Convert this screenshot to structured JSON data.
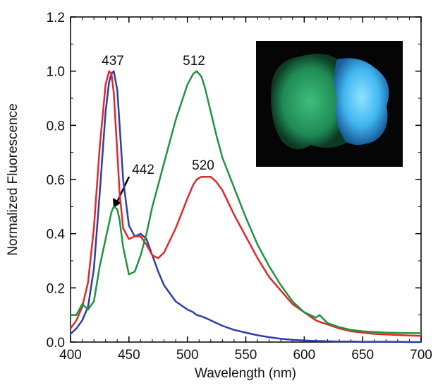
{
  "chart_data": {
    "type": "line",
    "xlabel": "Wavelength (nm)",
    "ylabel": "Normalized Fluorescence",
    "x": [
      400,
      405,
      410,
      415,
      420,
      425,
      430,
      433,
      435,
      437,
      440,
      442,
      445,
      450,
      455,
      460,
      465,
      470,
      475,
      480,
      490,
      500,
      505,
      508,
      512,
      515,
      520,
      525,
      530,
      540,
      550,
      560,
      570,
      580,
      590,
      600,
      610,
      613,
      620,
      630,
      640,
      650,
      660,
      670,
      680,
      690,
      700
    ],
    "series": [
      {
        "color": "#2b3ea8",
        "values": [
          0.03,
          0.05,
          0.08,
          0.13,
          0.27,
          0.55,
          0.85,
          0.96,
          0.99,
          1.0,
          0.93,
          0.8,
          0.6,
          0.43,
          0.39,
          0.4,
          0.38,
          0.32,
          0.26,
          0.21,
          0.15,
          0.12,
          0.11,
          0.1,
          0.095,
          0.09,
          0.08,
          0.07,
          0.06,
          0.045,
          0.035,
          0.025,
          0.018,
          0.012,
          0.008,
          0.006,
          0.004,
          0.004,
          0.003,
          0.002,
          0.002,
          0.001,
          0.001,
          0.001,
          0.001,
          0,
          0
        ]
      },
      {
        "color": "#e3262a",
        "values": [
          0.05,
          0.08,
          0.13,
          0.22,
          0.42,
          0.72,
          0.95,
          1.0,
          0.99,
          0.92,
          0.7,
          0.55,
          0.42,
          0.38,
          0.39,
          0.39,
          0.36,
          0.32,
          0.31,
          0.33,
          0.42,
          0.53,
          0.58,
          0.6,
          0.61,
          0.61,
          0.61,
          0.59,
          0.56,
          0.47,
          0.39,
          0.31,
          0.24,
          0.19,
          0.14,
          0.11,
          0.08,
          0.075,
          0.065,
          0.05,
          0.04,
          0.035,
          0.03,
          0.028,
          0.026,
          0.024,
          0.023
        ]
      },
      {
        "color": "#1f9440",
        "values": [
          0.1,
          0.1,
          0.14,
          0.12,
          0.15,
          0.28,
          0.38,
          0.44,
          0.48,
          0.5,
          0.49,
          0.45,
          0.35,
          0.25,
          0.26,
          0.32,
          0.4,
          0.5,
          0.58,
          0.66,
          0.82,
          0.95,
          0.99,
          1.0,
          0.98,
          0.94,
          0.85,
          0.76,
          0.68,
          0.57,
          0.46,
          0.36,
          0.28,
          0.21,
          0.15,
          0.11,
          0.09,
          0.1,
          0.07,
          0.055,
          0.045,
          0.04,
          0.037,
          0.035,
          0.034,
          0.033,
          0.033
        ]
      }
    ],
    "xlim": [
      400,
      700
    ],
    "xticks": [
      400,
      450,
      500,
      550,
      600,
      650,
      700
    ],
    "ylim": [
      0,
      1.2
    ],
    "yticks": [
      {
        "value": 0,
        "label": "0.0"
      },
      0.2,
      0.4,
      0.6,
      0.8,
      {
        "value": 1,
        "label": "1.0"
      },
      1.2
    ],
    "annotations": [
      "437",
      "512",
      "442",
      "520"
    ]
  }
}
